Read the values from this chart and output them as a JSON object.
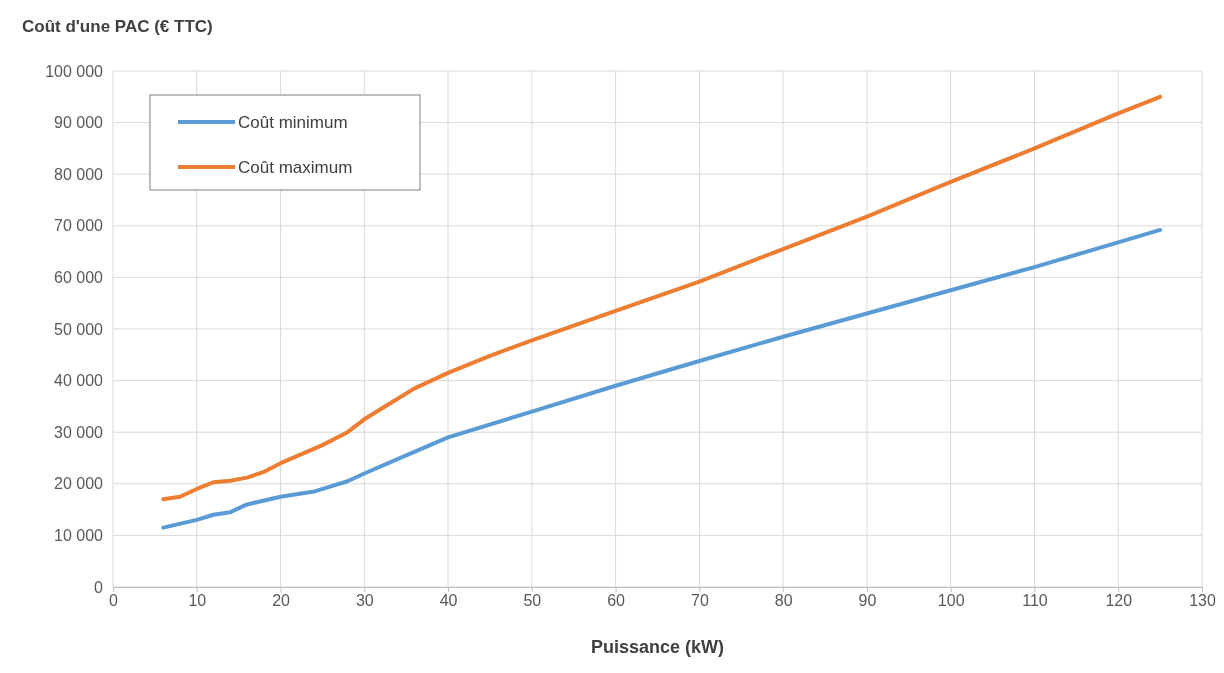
{
  "chart_data": {
    "type": "line",
    "ylabel": "Coût d'une PAC (€ TTC)",
    "xlabel": "Puissance (kW)",
    "xlim": [
      0,
      130
    ],
    "xticks": [
      0,
      10,
      20,
      30,
      40,
      50,
      60,
      70,
      80,
      90,
      100,
      110,
      120,
      130
    ],
    "ylim": [
      0,
      100000
    ],
    "yticks": [
      {
        "value": 0,
        "label": "0"
      },
      {
        "value": 10000,
        "label": "10 000"
      },
      {
        "value": 20000,
        "label": "20 000"
      },
      {
        "value": 30000,
        "label": "30 000"
      },
      {
        "value": 40000,
        "label": "40 000"
      },
      {
        "value": 50000,
        "label": "50 000"
      },
      {
        "value": 60000,
        "label": "60 000"
      },
      {
        "value": 70000,
        "label": "70 000"
      },
      {
        "value": 80000,
        "label": "80 000"
      },
      {
        "value": 90000,
        "label": "90 000"
      },
      {
        "value": 100000,
        "label": "100 000"
      }
    ],
    "grid": true,
    "legend": "top left",
    "marker": "none",
    "line_style": "solid",
    "series": [
      {
        "name": "Coût minimum",
        "color": "#5b9bd5",
        "x": [
          6,
          10,
          12,
          14,
          16,
          20,
          24,
          26,
          28,
          30,
          35,
          40,
          50,
          60,
          70,
          80,
          90,
          100,
          110,
          120,
          125
        ],
        "values": [
          11500,
          13000,
          14000,
          14500,
          16000,
          17500,
          18500,
          19500,
          20500,
          22000,
          25500,
          29000,
          34000,
          39000,
          43800,
          48500,
          53000,
          57500,
          62000,
          66800,
          69200
        ]
      },
      {
        "name": "Coût maximum",
        "color": "#ed7d31",
        "x": [
          6,
          8,
          10,
          12,
          14,
          16,
          18,
          20,
          25,
          28,
          30,
          33,
          36,
          40,
          45,
          50,
          60,
          70,
          80,
          90,
          100,
          110,
          120,
          125
        ],
        "values": [
          17000,
          17500,
          19000,
          20300,
          20600,
          21200,
          22300,
          24000,
          27500,
          30000,
          32500,
          35500,
          38500,
          41500,
          44800,
          47800,
          53500,
          59200,
          65500,
          71800,
          78500,
          85000,
          91800,
          95000
        ]
      }
    ]
  }
}
